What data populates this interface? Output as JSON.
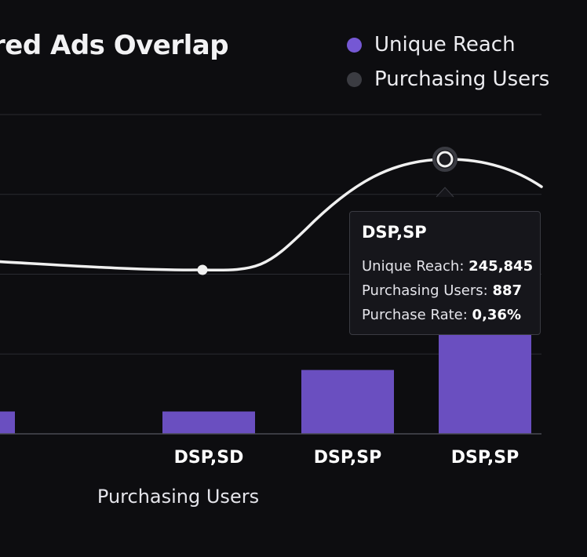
{
  "header": {
    "title": "red Ads Overlap"
  },
  "legend": {
    "items": [
      {
        "label": "Unique Reach",
        "color": "#7558d4"
      },
      {
        "label": "Purchasing Users",
        "color": "#3b3c42"
      }
    ]
  },
  "tooltip": {
    "title": "DSP,SP",
    "rows": [
      {
        "label": "Unique Reach:",
        "value": "245,845"
      },
      {
        "label": "Purchasing Users:",
        "value": "887"
      },
      {
        "label": "Purchase Rate:",
        "value": "0,36%"
      }
    ]
  },
  "chart_data": {
    "type": "bar",
    "title": "red Ads Overlap",
    "xlabel": "Purchasing Users",
    "categories": [
      "",
      "DSP,SD",
      "DSP,SP",
      "DSP,SP"
    ],
    "series": [
      {
        "name": "Unique Reach",
        "type": "bar",
        "color": "#6a4fc0",
        "values": [
          28000,
          28000,
          80000,
          245845
        ]
      },
      {
        "name": "Purchasing Users",
        "type": "line",
        "color": "#f0f0f0",
        "values": [
          210,
          200,
          700,
          887
        ]
      }
    ],
    "ylim": [
      0,
      400000
    ],
    "grid": true,
    "legend_position": "top-right"
  }
}
